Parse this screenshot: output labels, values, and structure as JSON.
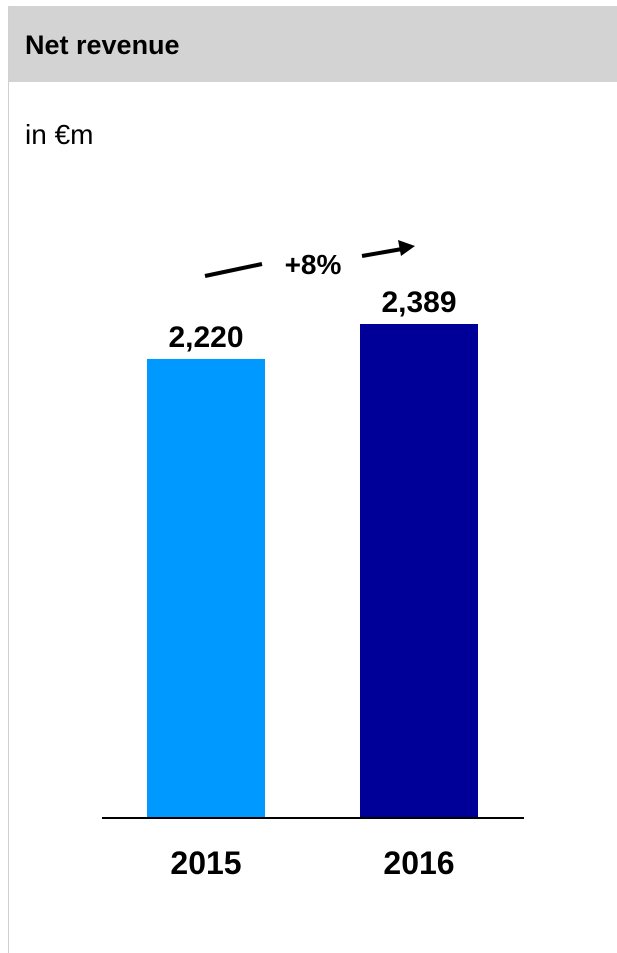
{
  "header": {
    "title": "Net revenue"
  },
  "unit": "in €m",
  "growth_label": "+8%",
  "colors": {
    "header_bg": "#d3d3d3",
    "bar_2015": "#0099ff",
    "bar_2016": "#000099",
    "axis": "#000000"
  },
  "chart_data": {
    "type": "bar",
    "categories": [
      "2015",
      "2016"
    ],
    "values": [
      2220,
      2389
    ],
    "value_labels": [
      "2,220",
      "2,389"
    ],
    "title": "Net revenue",
    "ylabel": "in €m",
    "xlabel": "",
    "ylim": [
      0,
      2389
    ],
    "grid": false,
    "legend": "none"
  }
}
